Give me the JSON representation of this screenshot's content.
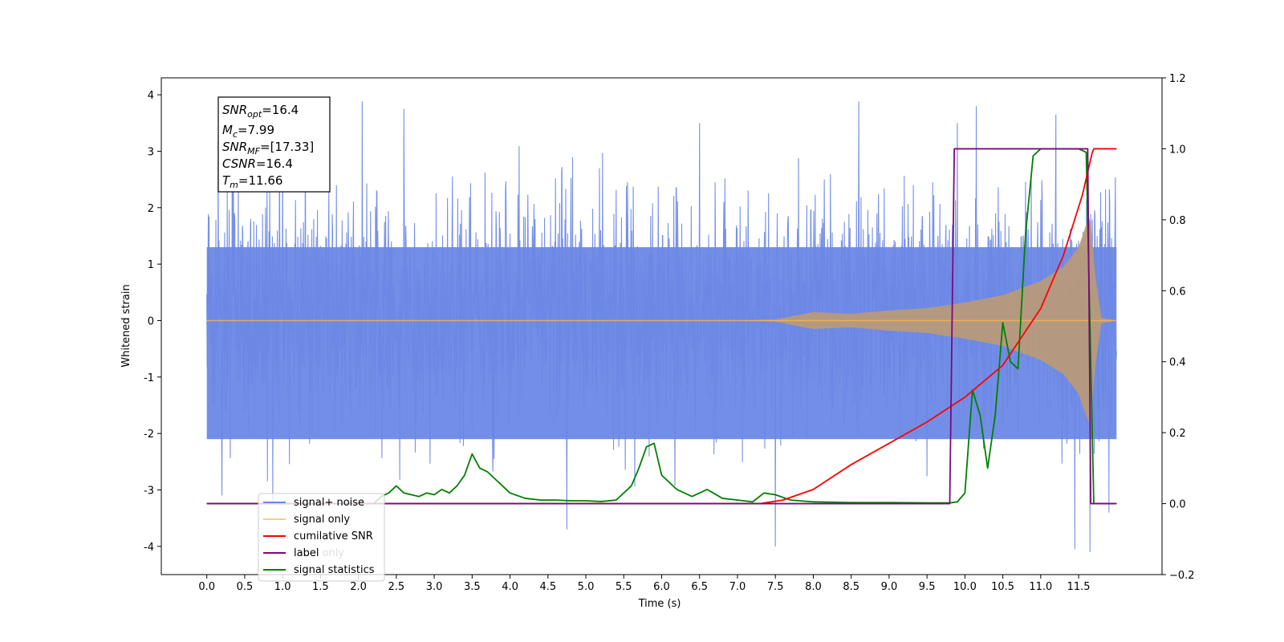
{
  "chart_data": {
    "type": "line",
    "xlabel": "Time (s)",
    "ylabel": "Whitened strain",
    "xlim": [
      -0.6,
      12.6
    ],
    "ylim": [
      -4.5,
      4.3
    ],
    "y2lim": [
      -0.2,
      1.2
    ],
    "x_ticks": [
      "0.0",
      "0.5",
      "1.0",
      "1.5",
      "2.0",
      "2.5",
      "3.0",
      "3.5",
      "4.0",
      "4.5",
      "5.0",
      "5.5",
      "6.0",
      "6.5",
      "7.0",
      "7.5",
      "8.0",
      "8.5",
      "9.0",
      "9.5",
      "10.0",
      "10.5",
      "11.0",
      "11.5"
    ],
    "y_ticks": [
      4,
      3,
      2,
      1,
      0,
      -1,
      -2,
      -3,
      -4
    ],
    "y2_ticks": [
      "1.2",
      "1.0",
      "0.8",
      "0.6",
      "0.4",
      "0.2",
      "0.0",
      "−0.2"
    ],
    "stats_box": {
      "snr_opt": "=16.4",
      "mc": "=7.99",
      "snr_mf": "=[17.33]",
      "csnr": "=16.4",
      "tm": "=11.66"
    },
    "legend_position": "lower-left",
    "legend": {
      "noise": "signal+ noise",
      "signal": "signal only",
      "snr": "cumilative SNR",
      "label": "label",
      "label_ghost": "label only",
      "stats": "signal statistics"
    },
    "colors": {
      "noise": "#6b88e5",
      "signal": "#ffb347",
      "signal_blend": "#b89a7a",
      "snr": "#ff0000",
      "label": "#7b0a7b",
      "stats": "#008000"
    },
    "series": [
      {
        "name": "signal+ noise",
        "axis": "left",
        "kind": "noise",
        "t_start": 0.0,
        "t_end": 12.0,
        "envelope_low": [
          -2.1,
          -1.5
        ],
        "envelope_high": [
          1.3,
          2.5
        ],
        "extremes": [
          {
            "x": 0.15,
            "y": 3.2
          },
          {
            "x": 0.2,
            "y": -3.1
          },
          {
            "x": 1.0,
            "y": 3.1
          },
          {
            "x": 1.3,
            "y": 3.5
          },
          {
            "x": 2.05,
            "y": 3.88
          },
          {
            "x": 2.6,
            "y": 3.75
          },
          {
            "x": 4.75,
            "y": -3.7
          },
          {
            "x": 7.5,
            "y": -4.0
          },
          {
            "x": 8.6,
            "y": 3.88
          },
          {
            "x": 10.15,
            "y": 3.8
          },
          {
            "x": 11.2,
            "y": 3.65
          },
          {
            "x": 11.45,
            "y": -4.05
          },
          {
            "x": 11.65,
            "y": -4.1
          },
          {
            "x": 11.9,
            "y": -3.4
          },
          {
            "x": 6.5,
            "y": 3.5
          },
          {
            "x": 9.9,
            "y": 3.5
          }
        ]
      },
      {
        "name": "signal only",
        "axis": "left",
        "kind": "chirp",
        "envelope": [
          [
            0.0,
            0.0
          ],
          [
            7.0,
            0.0
          ],
          [
            7.5,
            0.02
          ],
          [
            8.0,
            0.15
          ],
          [
            8.5,
            0.12
          ],
          [
            9.0,
            0.18
          ],
          [
            9.5,
            0.22
          ],
          [
            10.0,
            0.32
          ],
          [
            10.5,
            0.45
          ],
          [
            11.0,
            0.7
          ],
          [
            11.3,
            0.95
          ],
          [
            11.5,
            1.3
          ],
          [
            11.6,
            1.7
          ],
          [
            11.65,
            1.85
          ],
          [
            11.72,
            0.8
          ],
          [
            11.8,
            0.05
          ],
          [
            12.0,
            0.0
          ]
        ]
      },
      {
        "name": "cumilative SNR",
        "axis": "right",
        "x": [
          0.0,
          7.3,
          7.6,
          8.0,
          8.5,
          9.0,
          9.5,
          10.0,
          10.5,
          11.0,
          11.3,
          11.55,
          11.68,
          11.7,
          12.0
        ],
        "y": [
          0.0,
          0.0,
          0.01,
          0.04,
          0.11,
          0.17,
          0.23,
          0.3,
          0.39,
          0.55,
          0.7,
          0.87,
          0.99,
          1.0,
          1.0
        ]
      },
      {
        "name": "label",
        "axis": "right",
        "x": [
          0.0,
          9.8,
          9.86,
          11.62,
          11.66,
          12.0
        ],
        "y": [
          0.0,
          0.0,
          1.0,
          1.0,
          0.0,
          0.0
        ]
      },
      {
        "name": "signal statistics",
        "axis": "right",
        "x": [
          0.0,
          2.2,
          2.3,
          2.4,
          2.5,
          2.6,
          2.7,
          2.8,
          2.9,
          3.0,
          3.1,
          3.2,
          3.3,
          3.4,
          3.5,
          3.6,
          3.7,
          3.8,
          3.9,
          4.0,
          4.2,
          4.4,
          4.6,
          4.8,
          5.0,
          5.2,
          5.4,
          5.5,
          5.6,
          5.7,
          5.8,
          5.9,
          6.0,
          6.2,
          6.4,
          6.5,
          6.6,
          6.8,
          7.0,
          7.2,
          7.35,
          7.5,
          7.7,
          8.0,
          8.5,
          9.0,
          9.5,
          9.8,
          9.9,
          10.0,
          10.1,
          10.2,
          10.3,
          10.4,
          10.5,
          10.6,
          10.7,
          10.8,
          10.9,
          11.0,
          11.2,
          11.5,
          11.6,
          11.65,
          11.7,
          12.0
        ],
        "y": [
          0.0,
          0.0,
          0.02,
          0.03,
          0.05,
          0.03,
          0.025,
          0.02,
          0.03,
          0.025,
          0.04,
          0.03,
          0.05,
          0.08,
          0.14,
          0.1,
          0.09,
          0.07,
          0.05,
          0.03,
          0.015,
          0.01,
          0.01,
          0.008,
          0.008,
          0.006,
          0.01,
          0.03,
          0.05,
          0.1,
          0.16,
          0.17,
          0.08,
          0.04,
          0.02,
          0.03,
          0.04,
          0.015,
          0.01,
          0.005,
          0.03,
          0.025,
          0.01,
          0.005,
          0.003,
          0.003,
          0.002,
          0.002,
          0.005,
          0.03,
          0.32,
          0.25,
          0.1,
          0.25,
          0.51,
          0.4,
          0.38,
          0.76,
          0.98,
          1.0,
          1.0,
          1.0,
          0.99,
          0.5,
          0.0,
          0.0
        ]
      }
    ]
  }
}
